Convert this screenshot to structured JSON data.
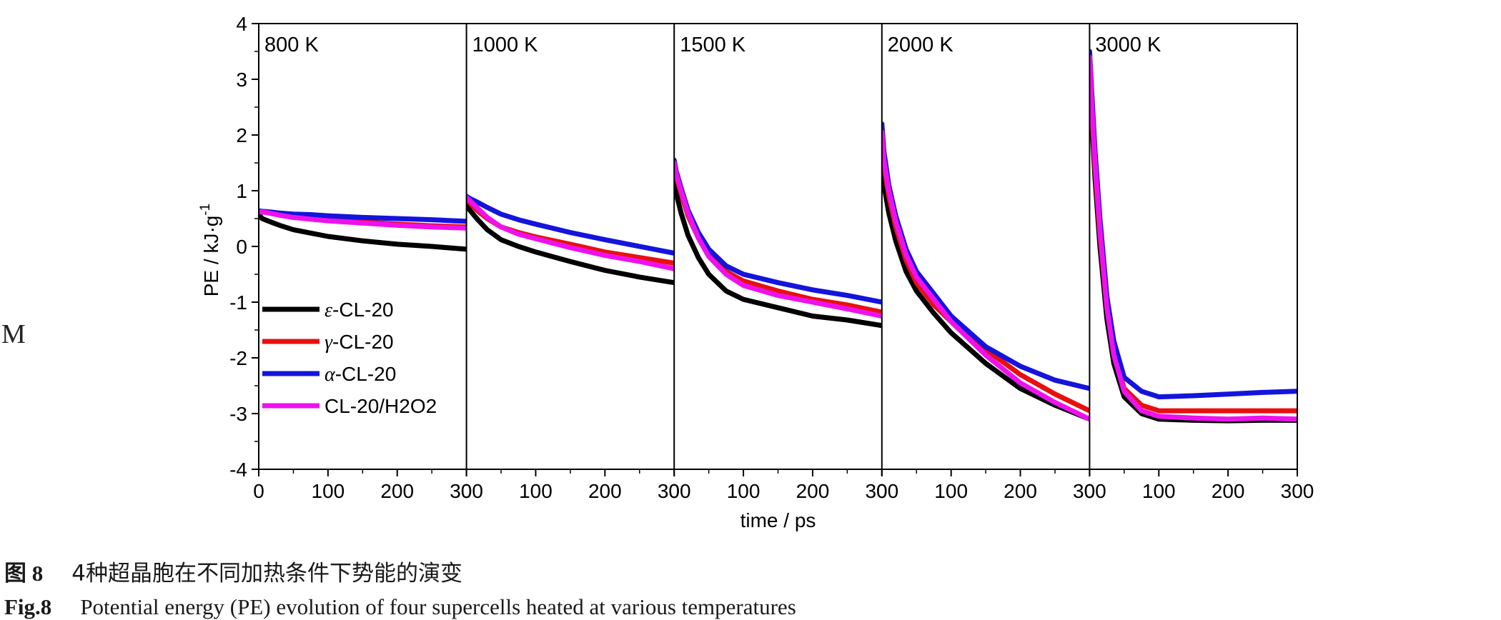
{
  "stray_label": "M",
  "caption": {
    "cn_number": "图 8",
    "cn_text": "4种超晶胞在不同加热条件下势能的演变",
    "en_number": "Fig.8",
    "en_text": "Potential energy (PE) evolution of four supercells heated at various temperatures"
  },
  "chart_data": {
    "type": "line",
    "xlabel": "time / ps",
    "ylabel": "PE / kJ·g",
    "ylabel_sup": "-1",
    "ylim": [
      -4,
      4
    ],
    "yticks": [
      4,
      3,
      2,
      1,
      0,
      -1,
      -2,
      -3,
      -4
    ],
    "x_range_per_panel": [
      0,
      300
    ],
    "xticks_per_panel": [
      0,
      100,
      200,
      300
    ],
    "colors": {
      "epsilon": "#000000",
      "gamma": "#e8100f",
      "alpha": "#1414dc",
      "h2o2": "#ee11ee"
    },
    "legend": {
      "placement": "lower-left of first panel",
      "entries": [
        {
          "key": "epsilon",
          "prefix": "ε",
          "label": "-CL-20"
        },
        {
          "key": "gamma",
          "prefix": "γ",
          "label": "-CL-20"
        },
        {
          "key": "alpha",
          "prefix": "α",
          "label": "-CL-20"
        },
        {
          "key": "h2o2",
          "prefix": "",
          "label": "CL-20/H2O2"
        }
      ]
    },
    "panels": [
      {
        "title": "800 K",
        "x": [
          0,
          5,
          15,
          30,
          50,
          75,
          100,
          150,
          200,
          250,
          300
        ],
        "series": [
          {
            "key": "epsilon",
            "values": [
              0.58,
              0.5,
              0.45,
              0.38,
              0.3,
              0.24,
              0.18,
              0.1,
              0.04,
              0.0,
              -0.05
            ]
          },
          {
            "key": "gamma",
            "values": [
              0.62,
              0.62,
              0.6,
              0.57,
              0.54,
              0.51,
              0.48,
              0.44,
              0.4,
              0.37,
              0.35
            ]
          },
          {
            "key": "alpha",
            "values": [
              0.64,
              0.63,
              0.62,
              0.6,
              0.58,
              0.57,
              0.55,
              0.52,
              0.5,
              0.48,
              0.45
            ]
          },
          {
            "key": "h2o2",
            "values": [
              0.62,
              0.62,
              0.6,
              0.56,
              0.52,
              0.49,
              0.46,
              0.42,
              0.38,
              0.35,
              0.33
            ]
          }
        ]
      },
      {
        "title": "1000 K",
        "x": [
          0,
          5,
          15,
          30,
          50,
          75,
          100,
          150,
          200,
          250,
          300
        ],
        "series": [
          {
            "key": "epsilon",
            "values": [
              0.75,
              0.65,
              0.5,
              0.3,
              0.12,
              0.0,
              -0.1,
              -0.27,
              -0.43,
              -0.55,
              -0.65
            ]
          },
          {
            "key": "gamma",
            "values": [
              0.85,
              0.78,
              0.65,
              0.5,
              0.35,
              0.25,
              0.17,
              0.04,
              -0.1,
              -0.2,
              -0.3
            ]
          },
          {
            "key": "alpha",
            "values": [
              0.9,
              0.86,
              0.8,
              0.7,
              0.58,
              0.48,
              0.4,
              0.25,
              0.12,
              0.0,
              -0.12
            ]
          },
          {
            "key": "h2o2",
            "values": [
              0.88,
              0.82,
              0.7,
              0.52,
              0.35,
              0.22,
              0.14,
              -0.02,
              -0.16,
              -0.27,
              -0.4
            ]
          }
        ]
      },
      {
        "title": "1500 K",
        "x": [
          0,
          3,
          10,
          20,
          35,
          50,
          75,
          100,
          150,
          200,
          250,
          300
        ],
        "series": [
          {
            "key": "epsilon",
            "values": [
              1.2,
              0.95,
              0.6,
              0.2,
              -0.2,
              -0.5,
              -0.8,
              -0.95,
              -1.1,
              -1.25,
              -1.32,
              -1.42
            ]
          },
          {
            "key": "gamma",
            "values": [
              1.45,
              1.25,
              0.95,
              0.55,
              0.15,
              -0.15,
              -0.45,
              -0.62,
              -0.8,
              -0.95,
              -1.05,
              -1.18
            ]
          },
          {
            "key": "alpha",
            "values": [
              1.55,
              1.35,
              1.05,
              0.65,
              0.25,
              -0.05,
              -0.35,
              -0.5,
              -0.65,
              -0.78,
              -0.88,
              -1.0
            ]
          },
          {
            "key": "h2o2",
            "values": [
              1.5,
              1.3,
              1.0,
              0.6,
              0.15,
              -0.18,
              -0.5,
              -0.7,
              -0.88,
              -1.0,
              -1.12,
              -1.25
            ]
          }
        ]
      },
      {
        "title": "2000 K",
        "x": [
          0,
          3,
          10,
          20,
          35,
          50,
          75,
          100,
          150,
          200,
          250,
          300
        ],
        "series": [
          {
            "key": "epsilon",
            "values": [
              1.5,
              1.1,
              0.6,
              0.1,
              -0.45,
              -0.8,
              -1.2,
              -1.55,
              -2.1,
              -2.55,
              -2.85,
              -3.1
            ]
          },
          {
            "key": "gamma",
            "values": [
              1.9,
              1.45,
              0.9,
              0.35,
              -0.25,
              -0.65,
              -1.05,
              -1.35,
              -1.85,
              -2.3,
              -2.65,
              -2.95
            ]
          },
          {
            "key": "alpha",
            "values": [
              2.2,
              1.7,
              1.1,
              0.55,
              -0.05,
              -0.45,
              -0.85,
              -1.25,
              -1.8,
              -2.15,
              -2.4,
              -2.55
            ]
          },
          {
            "key": "h2o2",
            "values": [
              2.05,
              1.55,
              1.0,
              0.45,
              -0.15,
              -0.55,
              -0.95,
              -1.35,
              -1.95,
              -2.45,
              -2.8,
              -3.1
            ]
          }
        ]
      },
      {
        "title": "3000 K",
        "x": [
          0,
          3,
          8,
          15,
          25,
          35,
          50,
          75,
          100,
          150,
          200,
          250,
          300
        ],
        "series": [
          {
            "key": "epsilon",
            "values": [
              3.2,
              2.3,
              1.2,
              0.0,
              -1.3,
              -2.1,
              -2.7,
              -3.0,
              -3.1,
              -3.12,
              -3.13,
              -3.12,
              -3.12
            ]
          },
          {
            "key": "gamma",
            "values": [
              3.3,
              2.5,
              1.4,
              0.2,
              -1.1,
              -1.9,
              -2.55,
              -2.85,
              -2.95,
              -2.95,
              -2.95,
              -2.95,
              -2.95
            ]
          },
          {
            "key": "alpha",
            "values": [
              3.5,
              2.8,
              1.7,
              0.5,
              -0.9,
              -1.7,
              -2.35,
              -2.6,
              -2.7,
              -2.68,
              -2.65,
              -2.62,
              -2.6
            ]
          },
          {
            "key": "h2o2",
            "values": [
              3.4,
              2.6,
              1.5,
              0.3,
              -1.1,
              -1.95,
              -2.6,
              -2.95,
              -3.05,
              -3.08,
              -3.1,
              -3.08,
              -3.1
            ]
          }
        ]
      }
    ]
  }
}
